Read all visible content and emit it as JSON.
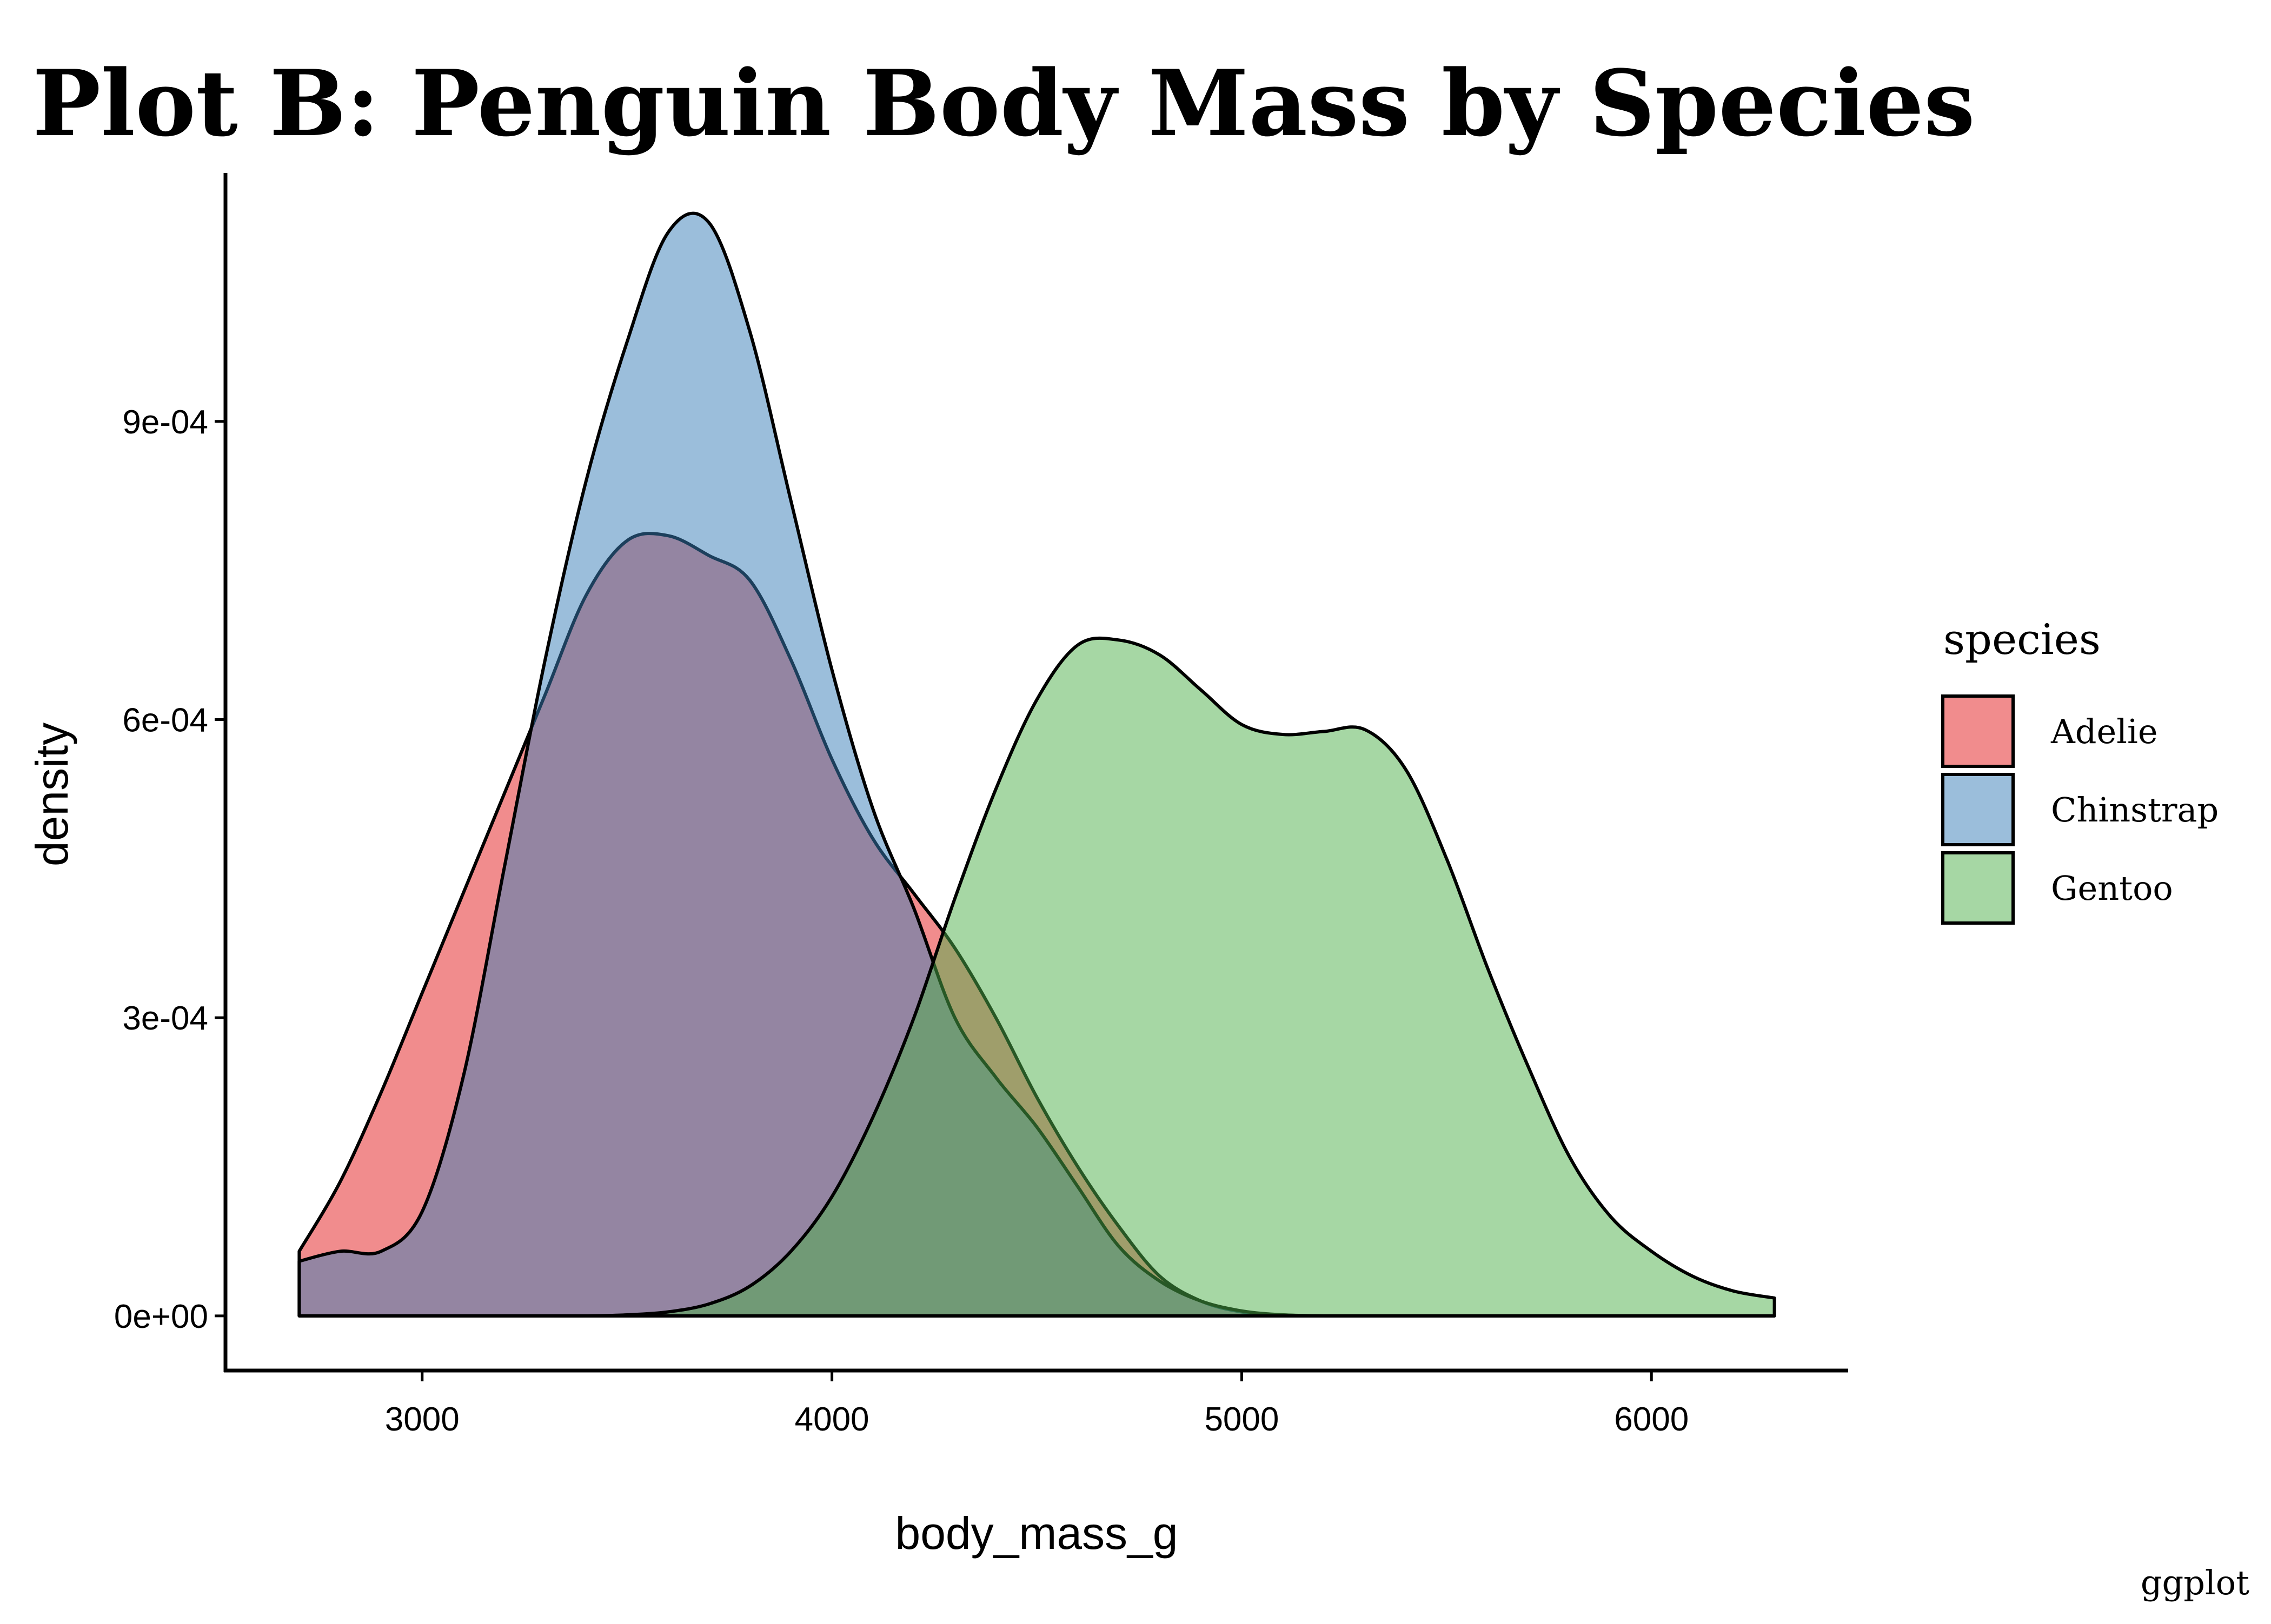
{
  "chart_data": {
    "type": "area",
    "subtype": "density",
    "title": "Plot B: Penguin Body Mass by Species",
    "xlabel": "body_mass_g",
    "ylabel": "density",
    "caption": "ggplot",
    "xlim": [
      2520,
      6480
    ],
    "ylim": [
      -5.5e-05,
      0.00115
    ],
    "x_ticks": [
      3000,
      4000,
      5000,
      6000
    ],
    "x_tick_labels": [
      "3000",
      "4000",
      "5000",
      "6000"
    ],
    "y_ticks": [
      0,
      0.0003,
      0.0006,
      0.0009
    ],
    "y_tick_labels": [
      "0e+00",
      "3e-04",
      "6e-04",
      "9e-04"
    ],
    "grid": false,
    "legend": {
      "title": "species",
      "position": "right"
    },
    "outline_color": "#000000",
    "fill_opacity": 0.5,
    "series": [
      {
        "name": "Adelie",
        "color": "#E41A1C",
        "x": [
          2700,
          2800,
          2900,
          3000,
          3100,
          3200,
          3300,
          3400,
          3500,
          3600,
          3700,
          3800,
          3900,
          4000,
          4100,
          4200,
          4300,
          4400,
          4500,
          4600,
          4700,
          4800,
          4900,
          5000,
          5100,
          5200,
          5300,
          5400,
          5500,
          5600,
          5700,
          5800,
          5900,
          6000,
          6100,
          6200,
          6300
        ],
        "y": [
          6.5e-05,
          0.000135,
          0.000225,
          0.000325,
          0.000425,
          0.000525,
          0.000625,
          0.000725,
          0.00078,
          0.000785,
          0.000765,
          0.00074,
          0.00066,
          0.00056,
          0.00048,
          0.000425,
          0.00037,
          0.0003,
          0.00022,
          0.00015,
          9e-05,
          4e-05,
          1.5e-05,
          4e-06,
          1e-06,
          0,
          0,
          0,
          0,
          0,
          0,
          0,
          0,
          0,
          0,
          0,
          0
        ]
      },
      {
        "name": "Chinstrap",
        "color": "#377EB8",
        "x": [
          2700,
          2800,
          2900,
          3000,
          3100,
          3200,
          3300,
          3400,
          3500,
          3600,
          3700,
          3800,
          3900,
          4000,
          4100,
          4200,
          4300,
          4400,
          4500,
          4600,
          4700,
          4800,
          4900,
          5000,
          5100,
          5200,
          5300,
          5400,
          5500,
          5600,
          5700,
          5800,
          5900,
          6000,
          6100,
          6200,
          6300
        ],
        "y": [
          5.5e-05,
          6.5e-05,
          6.5e-05,
          0.000105,
          0.00024,
          0.00045,
          0.00066,
          0.00084,
          0.00098,
          0.00109,
          0.0011,
          0.00099,
          0.00082,
          0.00065,
          0.00051,
          0.00041,
          0.0003,
          0.00024,
          0.00019,
          0.00013,
          7e-05,
          3.5e-05,
          1.5e-05,
          5e-06,
          1e-06,
          0,
          0,
          0,
          0,
          0,
          0,
          0,
          0,
          0,
          0,
          0,
          0
        ]
      },
      {
        "name": "Gentoo",
        "color": "#4DAF4A",
        "x": [
          2700,
          2800,
          2900,
          3000,
          3100,
          3200,
          3300,
          3400,
          3500,
          3600,
          3700,
          3800,
          3900,
          4000,
          4100,
          4200,
          4300,
          4400,
          4500,
          4600,
          4700,
          4800,
          4900,
          5000,
          5100,
          5200,
          5300,
          5400,
          5500,
          5600,
          5700,
          5800,
          5900,
          6000,
          6100,
          6200,
          6300
        ],
        "y": [
          0,
          0,
          0,
          0,
          0,
          0,
          0,
          0,
          1e-06,
          4e-06,
          1.2e-05,
          3e-05,
          6.5e-05,
          0.00012,
          0.0002,
          0.0003,
          0.00042,
          0.00053,
          0.00062,
          0.000675,
          0.00068,
          0.000665,
          0.00063,
          0.000595,
          0.000585,
          0.000588,
          0.00059,
          0.00055,
          0.00046,
          0.00035,
          0.00025,
          0.00016,
          0.0001,
          6.5e-05,
          4e-05,
          2.5e-05,
          1.8e-05
        ]
      }
    ]
  }
}
